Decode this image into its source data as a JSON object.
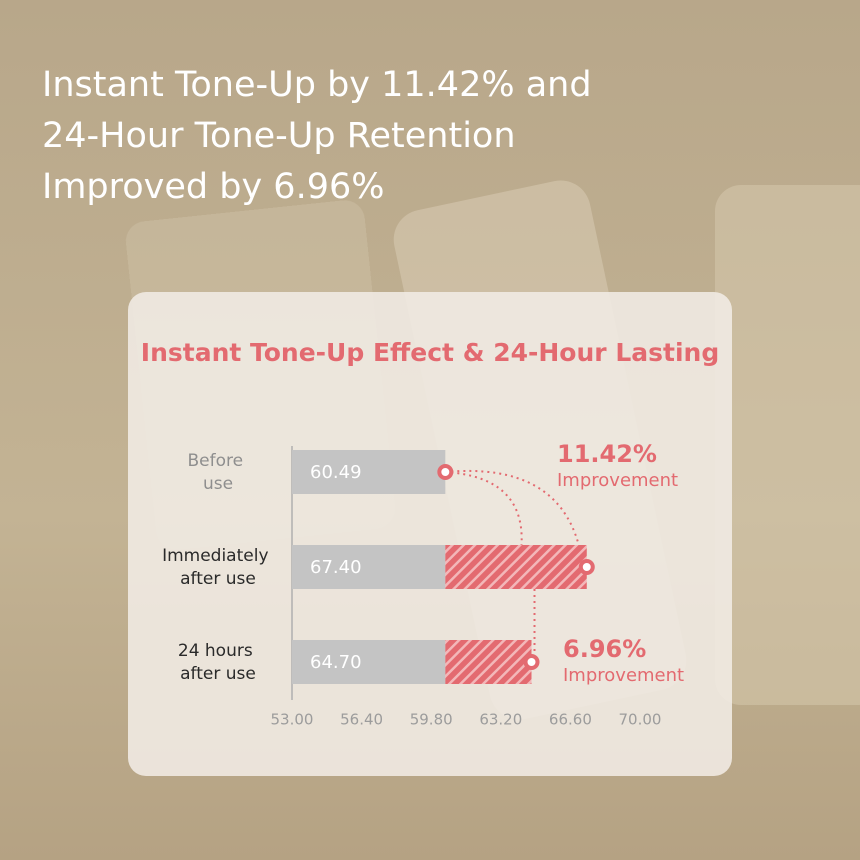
{
  "headline": [
    "Instant Tone-Up by 11.42% and",
    "24-Hour Tone-Up Retention",
    "Improved by 6.96%"
  ],
  "chart_data": {
    "type": "bar",
    "orientation": "horizontal",
    "title": "Instant Tone-Up Effect & 24-Hour Lasting",
    "categories": [
      "Before use",
      "Immediately after use",
      "24 hours after use"
    ],
    "values": [
      60.49,
      67.4,
      64.7
    ],
    "value_labels": [
      "60.49",
      "67.40",
      "64.70"
    ],
    "color": "#c4c4c4",
    "increase_color": "#e36a70",
    "xlim": [
      53,
      70
    ],
    "xticks": [
      {
        "value": 53,
        "label": "53.00"
      },
      {
        "value": 56.4,
        "label": "56.40"
      },
      {
        "value": 59.8,
        "label": "59.80"
      },
      {
        "value": 63.2,
        "label": "63.20"
      },
      {
        "value": 66.6,
        "label": "66.60"
      },
      {
        "value": 70,
        "label": "70.00"
      }
    ],
    "annotations": [
      {
        "value": "11.42%",
        "text": "Improvement"
      },
      {
        "value": "6.96%",
        "text": "Improvement"
      }
    ]
  }
}
